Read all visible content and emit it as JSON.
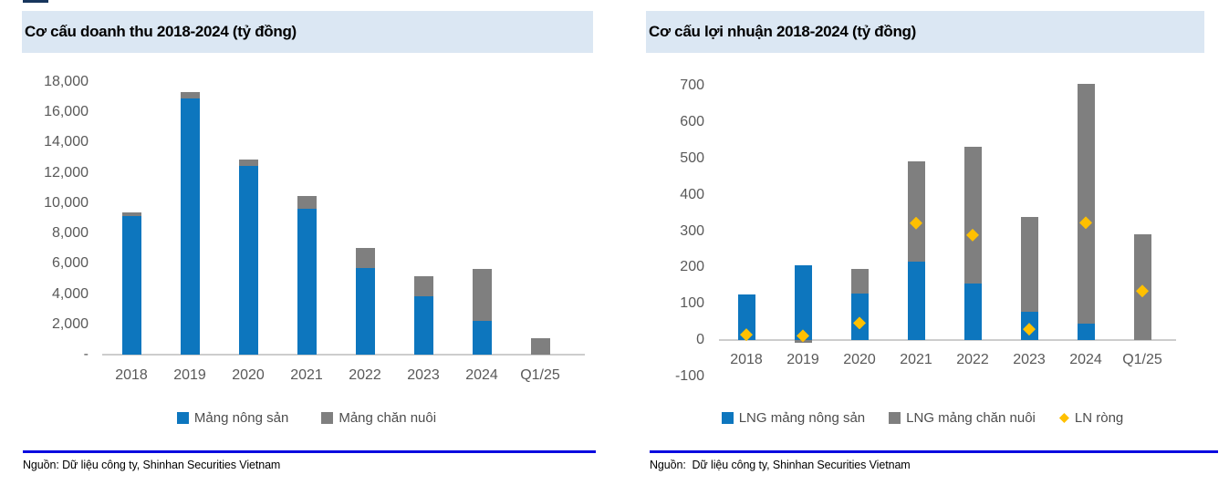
{
  "chart_data": [
    {
      "type": "bar",
      "stacked": true,
      "title": "Cơ cấu doanh thu 2018-2024 (tỷ đồng)",
      "categories": [
        "2018",
        "2019",
        "2020",
        "2021",
        "2022",
        "2023",
        "2024",
        "Q1/25"
      ],
      "series": [
        {
          "name": "Mảng nông sản",
          "type": "bar",
          "color": "#0d76be",
          "values": [
            9150,
            16900,
            12450,
            9650,
            5700,
            3850,
            2250,
            0
          ]
        },
        {
          "name": "Mảng chăn nuôi",
          "type": "bar",
          "color": "#7f7f7f",
          "values": [
            250,
            450,
            450,
            800,
            1350,
            1300,
            3400,
            1100
          ]
        }
      ],
      "xlabel": "",
      "ylabel": "",
      "ylim": [
        0,
        18000
      ],
      "yticks": [
        {
          "value": 0,
          "label": "-"
        },
        {
          "value": 2000,
          "label": "2,000"
        },
        {
          "value": 4000,
          "label": "4,000"
        },
        {
          "value": 6000,
          "label": "6,000"
        },
        {
          "value": 8000,
          "label": "8,000"
        },
        {
          "value": 10000,
          "label": "10,000"
        },
        {
          "value": 12000,
          "label": "12,000"
        },
        {
          "value": 14000,
          "label": "14,000"
        },
        {
          "value": 16000,
          "label": "16,000"
        },
        {
          "value": 18000,
          "label": "18,000"
        }
      ],
      "grid": false,
      "legend_position": "bottom"
    },
    {
      "type": "bar",
      "stacked": true,
      "title": "Cơ cấu lợi nhuận 2018-2024 (tỷ đồng)",
      "categories": [
        "2018",
        "2019",
        "2020",
        "2021",
        "2022",
        "2023",
        "2024",
        "Q1/25"
      ],
      "series": [
        {
          "name": "LNG mảng nông sản",
          "type": "bar",
          "color": "#0d76be",
          "values": [
            125,
            205,
            127,
            216,
            155,
            78,
            46,
            0
          ]
        },
        {
          "name": "LNG mảng chăn nuôi",
          "type": "bar",
          "color": "#7f7f7f",
          "values": [
            0,
            -8,
            68,
            275,
            378,
            260,
            659,
            290
          ]
        },
        {
          "name": "LN ròng",
          "type": "scatter",
          "marker": "diamond",
          "color": "#ffc000",
          "values": [
            15,
            12,
            47,
            322,
            289,
            30,
            323,
            135
          ]
        }
      ],
      "xlabel": "",
      "ylabel": "",
      "ylim": [
        -100,
        700
      ],
      "yticks": [
        {
          "value": -100,
          "label": "-100"
        },
        {
          "value": 0,
          "label": "0"
        },
        {
          "value": 100,
          "label": "100"
        },
        {
          "value": 200,
          "label": "200"
        },
        {
          "value": 300,
          "label": "300"
        },
        {
          "value": 400,
          "label": "400"
        },
        {
          "value": 500,
          "label": "500"
        },
        {
          "value": 600,
          "label": "600"
        },
        {
          "value": 700,
          "label": "700"
        }
      ],
      "grid": false,
      "legend_position": "bottom"
    }
  ],
  "panels": [
    {
      "source_note": "Nguồn: Dữ liệu công ty, Shinhan Securities Vietnam"
    },
    {
      "source_note": "Nguồn:  Dữ liệu công ty, Shinhan Securities Vietnam"
    }
  ],
  "colors": {
    "header_band": "#dbe7f3",
    "bar_blue": "#0d76be",
    "bar_gray": "#7f7f7f",
    "marker_gold": "#ffc000",
    "footer_rule_blue": "#0b0bdf",
    "axis_text": "#595959"
  }
}
